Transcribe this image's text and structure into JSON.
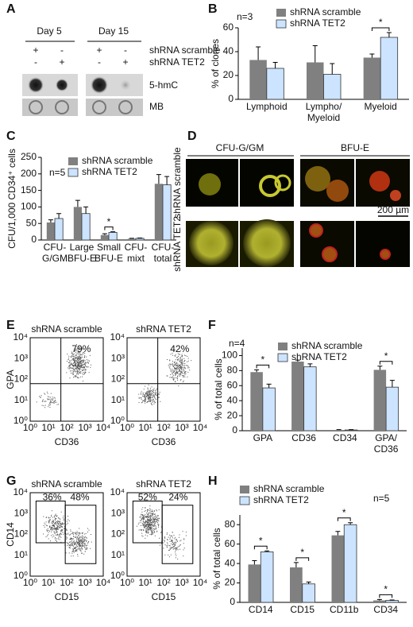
{
  "panel_labels": [
    "A",
    "B",
    "C",
    "D",
    "E",
    "F",
    "G",
    "H"
  ],
  "blot": {
    "days": [
      "Day 5",
      "Day 15"
    ],
    "rows": [
      {
        "label": "shRNA scramble",
        "signs": [
          "+",
          "-",
          "+",
          "-"
        ]
      },
      {
        "label": "shRNA TET2",
        "signs": [
          "-",
          "+",
          "-",
          "+"
        ]
      }
    ],
    "stains": [
      "5-hmC",
      "MB"
    ]
  },
  "micro": {
    "columns": [
      "CFU-G/GM",
      "BFU-E"
    ],
    "rows": [
      "shRNA scramble",
      "shRNA TET2"
    ],
    "scale_bar": "200 µm"
  },
  "flow": [
    {
      "xlabel": "CD36",
      "ylabel": "GPA",
      "ticks": [
        "10⁰",
        "10¹",
        "10²",
        "10³",
        "10⁴"
      ],
      "plots": [
        {
          "title": "shRNA scramble",
          "gates": [
            "79%"
          ]
        },
        {
          "title": "shRNA TET2",
          "gates": [
            "42%"
          ]
        }
      ]
    },
    {
      "xlabel": "CD15",
      "ylabel": "CD14",
      "ticks": [
        "10⁰",
        "10¹",
        "10²",
        "10³",
        "10⁴"
      ],
      "plots": [
        {
          "title": "shRNA scramble",
          "gates": [
            "36%",
            "48%"
          ]
        },
        {
          "title": "shRNA TET2",
          "gates": [
            "52%",
            "24%"
          ]
        }
      ]
    }
  ],
  "chart_data": [
    {
      "type": "bar",
      "annotation": "n=3",
      "ylabel": "% of clones",
      "categories": [
        "Lymphoid",
        "Lympho/\nMyeloid",
        "Myeloid"
      ],
      "series": [
        {
          "name": "shRNA scramble",
          "color": "#808080",
          "values": [
            33,
            31,
            35
          ],
          "errors": [
            11,
            14,
            3
          ]
        },
        {
          "name": "shRNA TET2",
          "color": "#cce4ff",
          "values": [
            26,
            21,
            52
          ],
          "errors": [
            5,
            9,
            4
          ]
        }
      ],
      "ylim": [
        0,
        60
      ],
      "yticks": [
        0,
        20,
        40,
        60
      ],
      "legend": "top",
      "significance": [
        {
          "category": "Myeloid",
          "label": "*"
        }
      ]
    },
    {
      "type": "bar",
      "annotation": "n=5",
      "ylabel": "CFU/1,000 CD34⁺ cells",
      "categories": [
        "CFU-\nG/GM",
        "Large\nBFU-E",
        "Small\nBFU-E",
        "CFU-\nmixt",
        "CFU-\ntotal"
      ],
      "series": [
        {
          "name": "shRNA scramble",
          "color": "#808080",
          "values": [
            53,
            100,
            15,
            4,
            170
          ],
          "errors": [
            8,
            20,
            4,
            1,
            28
          ]
        },
        {
          "name": "shRNA TET2",
          "color": "#cce4ff",
          "values": [
            65,
            80,
            23,
            5,
            167
          ],
          "errors": [
            15,
            20,
            2,
            1,
            25
          ]
        }
      ],
      "ylim": [
        0,
        250
      ],
      "yticks": [
        0,
        50,
        100,
        150,
        200,
        250
      ],
      "legend": "top",
      "significance": [
        {
          "category": "Small\nBFU-E",
          "label": "*"
        }
      ]
    },
    {
      "type": "bar",
      "annotation": "n=4",
      "ylabel": "% of total cells",
      "categories": [
        "GPA",
        "CD36",
        "CD34",
        "GPA/\nCD36"
      ],
      "series": [
        {
          "name": "shRNA scramble",
          "color": "#808080",
          "values": [
            78,
            92,
            1,
            81
          ],
          "errors": [
            3,
            2,
            0.5,
            5
          ]
        },
        {
          "name": "shRNA TET2",
          "color": "#cce4ff",
          "values": [
            57,
            85,
            1,
            58
          ],
          "errors": [
            5,
            4,
            0.5,
            9
          ]
        }
      ],
      "ylim": [
        0,
        110
      ],
      "yticks": [
        0,
        20,
        40,
        60,
        80,
        100
      ],
      "legend": "top",
      "significance": [
        {
          "category": "GPA",
          "label": "*"
        },
        {
          "category": "GPA/\nCD36",
          "label": "*"
        }
      ]
    },
    {
      "type": "bar",
      "annotation": "n=5",
      "ylabel": "% of total cells",
      "categories": [
        "CD14",
        "CD15",
        "CD11b",
        "CD34"
      ],
      "series": [
        {
          "name": "shRNA scramble",
          "color": "#808080",
          "values": [
            39,
            36,
            69,
            2
          ],
          "errors": [
            4,
            5,
            4,
            1
          ]
        },
        {
          "name": "shRNA TET2",
          "color": "#cce4ff",
          "values": [
            52,
            19,
            80,
            2
          ],
          "errors": [
            1,
            2,
            2,
            0.5
          ]
        }
      ],
      "ylim": [
        0,
        90
      ],
      "yticks": [
        0,
        20,
        40,
        60,
        80
      ],
      "legend": "top",
      "significance": [
        {
          "category": "CD14",
          "label": "*"
        },
        {
          "category": "CD15",
          "label": "*"
        },
        {
          "category": "CD11b",
          "label": "*"
        },
        {
          "category": "CD34",
          "label": "*"
        }
      ]
    }
  ]
}
